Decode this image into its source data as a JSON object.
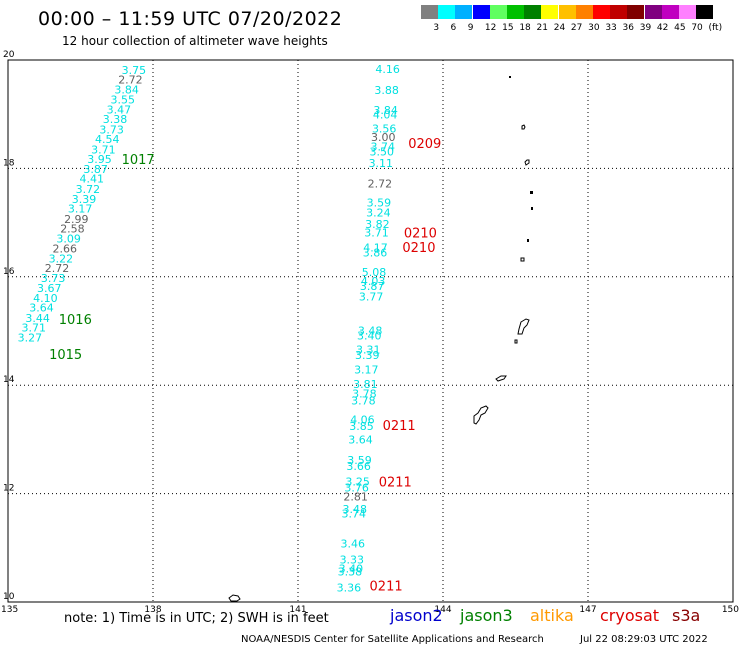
{
  "header": {
    "title": "00:00 – 11:59 UTC 07/20/2022",
    "subtitle": "12 hour collection of altimeter wave heights"
  },
  "color_scale": {
    "colors": [
      "#808080",
      "#00ffff",
      "#00b0ff",
      "#0000ff",
      "#60ff60",
      "#00c000",
      "#008000",
      "#ffff00",
      "#ffc000",
      "#ff8000",
      "#ff0000",
      "#c00000",
      "#800000",
      "#800080",
      "#c000c0",
      "#ff80ff",
      "#000000"
    ],
    "labels": [
      "3",
      "6",
      "9",
      "12",
      "15",
      "18",
      "21",
      "24",
      "27",
      "30",
      "33",
      "36",
      "39",
      "42",
      "45",
      "70",
      "(ft)"
    ]
  },
  "chart_data": {
    "type": "scatter",
    "xlabel_ticks": [
      "135",
      "138",
      "141",
      "144",
      "147",
      "150"
    ],
    "ylabel_ticks": [
      "10",
      "12",
      "14",
      "16",
      "18",
      "20"
    ],
    "xlim": [
      135,
      150
    ],
    "ylim": [
      10,
      20
    ],
    "track_colors": {
      "cyan": "#00e0e0",
      "gray": "#606060",
      "green": "#008000",
      "red": "#dd0000"
    },
    "west_track": [
      {
        "lon": 137.35,
        "lat": 19.82,
        "v": "3.75",
        "c": "cyan"
      },
      {
        "lon": 137.28,
        "lat": 19.64,
        "v": "2.72",
        "c": "gray"
      },
      {
        "lon": 137.2,
        "lat": 19.46,
        "v": "3.84",
        "c": "cyan"
      },
      {
        "lon": 137.12,
        "lat": 19.27,
        "v": "3.55",
        "c": "cyan"
      },
      {
        "lon": 137.04,
        "lat": 19.09,
        "v": "3.47",
        "c": "cyan"
      },
      {
        "lon": 136.96,
        "lat": 18.91,
        "v": "3.38",
        "c": "cyan"
      },
      {
        "lon": 136.89,
        "lat": 18.72,
        "v": "3.73",
        "c": "cyan"
      },
      {
        "lon": 136.8,
        "lat": 18.54,
        "v": "4.54",
        "c": "cyan"
      },
      {
        "lon": 136.72,
        "lat": 18.35,
        "v": "3.71",
        "c": "cyan"
      },
      {
        "lon": 136.64,
        "lat": 18.17,
        "v": "3.95",
        "c": "cyan"
      },
      {
        "lon": 136.56,
        "lat": 17.99,
        "v": "3.87",
        "c": "cyan"
      },
      {
        "lon": 136.48,
        "lat": 17.81,
        "v": "4.41",
        "c": "cyan"
      },
      {
        "lon": 136.4,
        "lat": 17.62,
        "v": "3.72",
        "c": "cyan"
      },
      {
        "lon": 136.32,
        "lat": 17.44,
        "v": "3.39",
        "c": "cyan"
      },
      {
        "lon": 136.24,
        "lat": 17.26,
        "v": "3.17",
        "c": "cyan"
      },
      {
        "lon": 136.16,
        "lat": 17.07,
        "v": "2.99",
        "c": "gray"
      },
      {
        "lon": 136.08,
        "lat": 16.89,
        "v": "2.58",
        "c": "gray"
      },
      {
        "lon": 136.0,
        "lat": 16.71,
        "v": "3.09",
        "c": "cyan"
      },
      {
        "lon": 135.92,
        "lat": 16.52,
        "v": "2.66",
        "c": "gray"
      },
      {
        "lon": 135.84,
        "lat": 16.34,
        "v": "3.22",
        "c": "cyan"
      },
      {
        "lon": 135.76,
        "lat": 16.16,
        "v": "2.72",
        "c": "gray"
      },
      {
        "lon": 135.68,
        "lat": 15.98,
        "v": "3.73",
        "c": "cyan"
      },
      {
        "lon": 135.6,
        "lat": 15.79,
        "v": "3.67",
        "c": "cyan"
      },
      {
        "lon": 135.52,
        "lat": 15.61,
        "v": "4.10",
        "c": "cyan"
      },
      {
        "lon": 135.44,
        "lat": 15.43,
        "v": "3.64",
        "c": "cyan"
      },
      {
        "lon": 135.36,
        "lat": 15.24,
        "v": "3.44",
        "c": "cyan"
      },
      {
        "lon": 135.28,
        "lat": 15.06,
        "v": "3.71",
        "c": "cyan"
      },
      {
        "lon": 135.2,
        "lat": 14.88,
        "v": "3.27",
        "c": "cyan"
      }
    ],
    "east_track": [
      {
        "lon": 142.6,
        "lat": 19.83,
        "v": "4.16",
        "c": "cyan"
      },
      {
        "lon": 142.58,
        "lat": 19.45,
        "v": "3.88",
        "c": "cyan"
      },
      {
        "lon": 142.56,
        "lat": 19.08,
        "v": "3.84",
        "c": "cyan"
      },
      {
        "lon": 142.55,
        "lat": 18.99,
        "v": "4.04",
        "c": "cyan"
      },
      {
        "lon": 142.53,
        "lat": 18.74,
        "v": "3.56",
        "c": "cyan"
      },
      {
        "lon": 142.51,
        "lat": 18.58,
        "v": "3.00",
        "c": "gray"
      },
      {
        "lon": 142.5,
        "lat": 18.4,
        "v": "3.74",
        "c": "cyan"
      },
      {
        "lon": 142.48,
        "lat": 18.31,
        "v": "3.50",
        "c": "cyan"
      },
      {
        "lon": 142.46,
        "lat": 18.1,
        "v": "3.11",
        "c": "cyan"
      },
      {
        "lon": 142.44,
        "lat": 17.72,
        "v": "2.72",
        "c": "gray"
      },
      {
        "lon": 142.42,
        "lat": 17.37,
        "v": "3.59",
        "c": "cyan"
      },
      {
        "lon": 142.41,
        "lat": 17.19,
        "v": "3.24",
        "c": "cyan"
      },
      {
        "lon": 142.39,
        "lat": 16.97,
        "v": "3.82",
        "c": "cyan"
      },
      {
        "lon": 142.37,
        "lat": 16.82,
        "v": "3.71",
        "c": "cyan"
      },
      {
        "lon": 142.35,
        "lat": 16.54,
        "v": "4.17",
        "c": "cyan"
      },
      {
        "lon": 142.34,
        "lat": 16.45,
        "v": "3.86",
        "c": "cyan"
      },
      {
        "lon": 142.32,
        "lat": 16.09,
        "v": "5.08",
        "c": "cyan"
      },
      {
        "lon": 142.3,
        "lat": 15.92,
        "v": "4.03",
        "c": "cyan"
      },
      {
        "lon": 142.28,
        "lat": 15.83,
        "v": "3.87",
        "c": "cyan"
      },
      {
        "lon": 142.26,
        "lat": 15.64,
        "v": "3.77",
        "c": "cyan"
      },
      {
        "lon": 142.24,
        "lat": 15.01,
        "v": "3.48",
        "c": "cyan"
      },
      {
        "lon": 142.22,
        "lat": 14.92,
        "v": "3.40",
        "c": "cyan"
      },
      {
        "lon": 142.2,
        "lat": 14.66,
        "v": "3.31",
        "c": "cyan"
      },
      {
        "lon": 142.18,
        "lat": 14.56,
        "v": "3.39",
        "c": "cyan"
      },
      {
        "lon": 142.16,
        "lat": 14.29,
        "v": "3.17",
        "c": "cyan"
      },
      {
        "lon": 142.14,
        "lat": 14.02,
        "v": "3.81",
        "c": "cyan"
      },
      {
        "lon": 142.12,
        "lat": 13.85,
        "v": "3.78",
        "c": "cyan"
      },
      {
        "lon": 142.1,
        "lat": 13.72,
        "v": "3.78",
        "c": "cyan"
      },
      {
        "lon": 142.08,
        "lat": 13.37,
        "v": "4.06",
        "c": "cyan"
      },
      {
        "lon": 142.06,
        "lat": 13.25,
        "v": "3.85",
        "c": "cyan"
      },
      {
        "lon": 142.04,
        "lat": 13.0,
        "v": "3.64",
        "c": "cyan"
      },
      {
        "lon": 142.02,
        "lat": 12.62,
        "v": "3.59",
        "c": "cyan"
      },
      {
        "lon": 142.0,
        "lat": 12.51,
        "v": "3.66",
        "c": "cyan"
      },
      {
        "lon": 141.98,
        "lat": 12.22,
        "v": "3.25",
        "c": "cyan"
      },
      {
        "lon": 141.96,
        "lat": 12.11,
        "v": "3.76",
        "c": "cyan"
      },
      {
        "lon": 141.94,
        "lat": 11.95,
        "v": "2.81",
        "c": "gray"
      },
      {
        "lon": 141.92,
        "lat": 11.72,
        "v": "3.48",
        "c": "cyan"
      },
      {
        "lon": 141.9,
        "lat": 11.63,
        "v": "3.74",
        "c": "cyan"
      },
      {
        "lon": 141.88,
        "lat": 11.08,
        "v": "3.46",
        "c": "cyan"
      },
      {
        "lon": 141.86,
        "lat": 10.78,
        "v": "3.33",
        "c": "cyan"
      },
      {
        "lon": 141.84,
        "lat": 10.62,
        "v": "3.40",
        "c": "cyan"
      },
      {
        "lon": 141.82,
        "lat": 10.56,
        "v": "3.38",
        "c": "cyan"
      },
      {
        "lon": 141.8,
        "lat": 10.27,
        "v": "3.36",
        "c": "cyan"
      }
    ],
    "time_labels": [
      {
        "lon": 137.35,
        "lat": 18.17,
        "t": "1017",
        "c": "green"
      },
      {
        "lon": 136.05,
        "lat": 15.22,
        "t": "1016",
        "c": "green"
      },
      {
        "lon": 135.85,
        "lat": 14.58,
        "t": "1015",
        "c": "green"
      },
      {
        "lon": 143.28,
        "lat": 18.47,
        "t": "0209",
        "c": "red"
      },
      {
        "lon": 143.19,
        "lat": 16.82,
        "t": "0210",
        "c": "red"
      },
      {
        "lon": 143.16,
        "lat": 16.55,
        "t": "0210",
        "c": "red"
      },
      {
        "lon": 142.75,
        "lat": 13.27,
        "t": "0211",
        "c": "red"
      },
      {
        "lon": 142.67,
        "lat": 12.22,
        "t": "0211",
        "c": "red"
      },
      {
        "lon": 142.48,
        "lat": 10.3,
        "t": "0211",
        "c": "red"
      }
    ]
  },
  "footer": {
    "note": "note: 1) Time is in UTC; 2) SWH is in feet",
    "satellites": [
      {
        "name": "jason2",
        "color": "#0000cc"
      },
      {
        "name": "jason3",
        "color": "#008000"
      },
      {
        "name": "altika",
        "color": "#ff9900"
      },
      {
        "name": "cryosat",
        "color": "#dd0000"
      },
      {
        "name": "s3a",
        "color": "#880000"
      }
    ],
    "credit": "NOAA/NESDIS Center for Satellite Applications and Research",
    "generated": "Jul 22 08:29:03 UTC 2022"
  }
}
